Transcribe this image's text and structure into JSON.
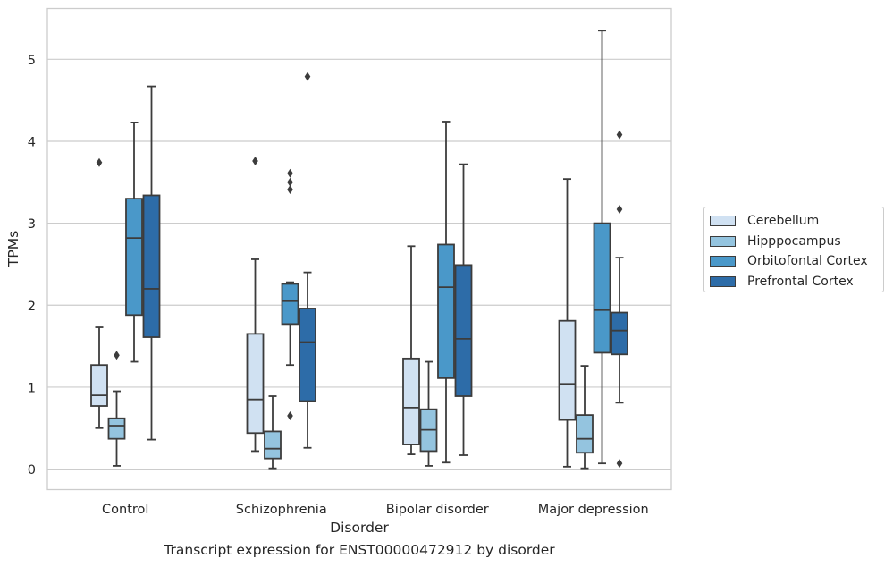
{
  "caption": "Transcript expression for ENST00000472912 by disorder",
  "chart_data": {
    "type": "box",
    "xlabel": "Disorder",
    "ylabel": "TPMs",
    "ylim": [
      -0.25,
      5.62
    ],
    "yticks": [
      0,
      1,
      2,
      3,
      4,
      5
    ],
    "grid": "horizontal",
    "legend_position": "right",
    "categories": [
      "Control",
      "Schizophrenia",
      "Bipolar disorder",
      "Major depression"
    ],
    "series": [
      {
        "name": "Cerebellum",
        "color": "#d0e1f2",
        "boxes": [
          {
            "whisker_low": 0.5,
            "q1": 0.77,
            "median": 0.9,
            "q3": 1.27,
            "whisker_high": 1.73,
            "outliers": [
              3.74
            ]
          },
          {
            "whisker_low": 0.22,
            "q1": 0.44,
            "median": 0.85,
            "q3": 1.65,
            "whisker_high": 2.56,
            "outliers": [
              3.76
            ]
          },
          {
            "whisker_low": 0.18,
            "q1": 0.3,
            "median": 0.75,
            "q3": 1.35,
            "whisker_high": 2.72,
            "outliers": []
          },
          {
            "whisker_low": 0.03,
            "q1": 0.6,
            "median": 1.04,
            "q3": 1.81,
            "whisker_high": 3.54,
            "outliers": []
          }
        ]
      },
      {
        "name": "Hipppocampus",
        "color": "#94c4df",
        "boxes": [
          {
            "whisker_low": 0.04,
            "q1": 0.37,
            "median": 0.53,
            "q3": 0.62,
            "whisker_high": 0.95,
            "outliers": [
              1.39
            ]
          },
          {
            "whisker_low": 0.01,
            "q1": 0.13,
            "median": 0.25,
            "q3": 0.46,
            "whisker_high": 0.89,
            "outliers": []
          },
          {
            "whisker_low": 0.04,
            "q1": 0.22,
            "median": 0.48,
            "q3": 0.73,
            "whisker_high": 1.31,
            "outliers": []
          },
          {
            "whisker_low": 0.01,
            "q1": 0.2,
            "median": 0.37,
            "q3": 0.66,
            "whisker_high": 1.26,
            "outliers": []
          }
        ]
      },
      {
        "name": "Orbitofontal Cortex",
        "color": "#4a98c9",
        "boxes": [
          {
            "whisker_low": 1.31,
            "q1": 1.88,
            "median": 2.82,
            "q3": 3.3,
            "whisker_high": 4.23,
            "outliers": []
          },
          {
            "whisker_low": 1.27,
            "q1": 1.77,
            "median": 2.05,
            "q3": 2.26,
            "whisker_high": 2.28,
            "outliers": [
              3.61,
              3.5,
              3.41,
              0.65
            ]
          },
          {
            "whisker_low": 0.08,
            "q1": 1.11,
            "median": 2.22,
            "q3": 2.74,
            "whisker_high": 4.24,
            "outliers": []
          },
          {
            "whisker_low": 0.07,
            "q1": 1.42,
            "median": 1.94,
            "q3": 3.0,
            "whisker_high": 5.35,
            "outliers": []
          }
        ]
      },
      {
        "name": "Prefrontal Cortex",
        "color": "#2d6ca8",
        "boxes": [
          {
            "whisker_low": 0.36,
            "q1": 1.61,
            "median": 2.2,
            "q3": 3.34,
            "whisker_high": 4.67,
            "outliers": []
          },
          {
            "whisker_low": 0.26,
            "q1": 0.83,
            "median": 1.55,
            "q3": 1.96,
            "whisker_high": 2.4,
            "outliers": [
              4.79
            ]
          },
          {
            "whisker_low": 0.17,
            "q1": 0.89,
            "median": 1.59,
            "q3": 2.49,
            "whisker_high": 3.72,
            "outliers": []
          },
          {
            "whisker_low": 0.81,
            "q1": 1.4,
            "median": 1.69,
            "q3": 1.91,
            "whisker_high": 2.58,
            "outliers": [
              4.08,
              3.17,
              0.07
            ]
          }
        ]
      }
    ]
  }
}
